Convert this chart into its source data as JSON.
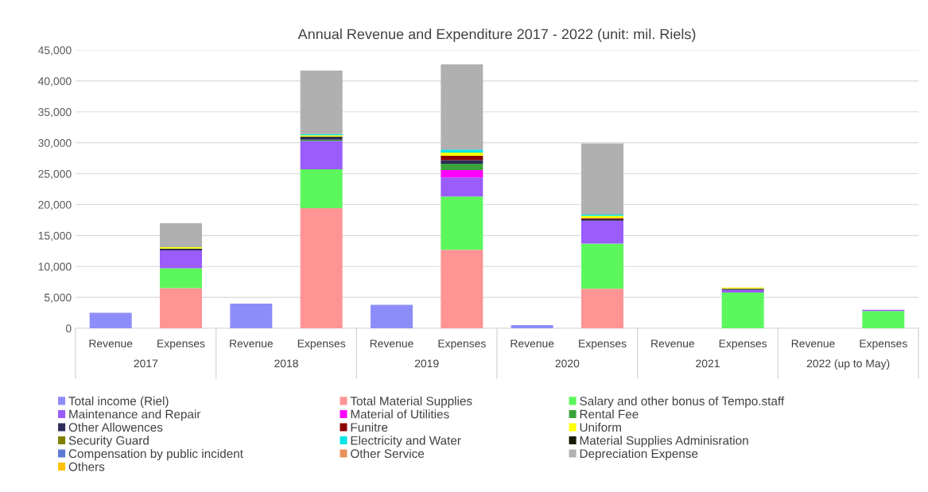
{
  "chart_data": {
    "type": "bar",
    "stacked": true,
    "title": "Annual Revenue and Expenditure 2017 - 2022 (unit: mil. Riels)",
    "categories": [
      "Revenue",
      "Expenses",
      "Revenue",
      "Expenses",
      "Revenue",
      "Expenses",
      "Revenue",
      "Expenses",
      "Revenue",
      "Expenses",
      "Revenue",
      "Expenses"
    ],
    "annotations": [
      "2017",
      "2018",
      "2019",
      "2020",
      "2021",
      "2022 (up to May)"
    ],
    "ylim": [
      0,
      45000
    ],
    "yticks": [
      0,
      {
        "value": 5000,
        "label": "5,000"
      },
      {
        "value": 10000,
        "label": "10,000"
      },
      {
        "value": 15000,
        "label": "15,000"
      },
      {
        "value": 20000,
        "label": "20,000"
      },
      {
        "value": 25000,
        "label": "25,000"
      },
      {
        "value": 30000,
        "label": "30,000"
      },
      {
        "value": 35000,
        "label": "35,000"
      },
      {
        "value": 40000,
        "label": "40,000"
      },
      {
        "value": 45000,
        "label": "45,000"
      }
    ],
    "grid": "y",
    "legend": "bottom",
    "series": [
      {
        "name": "Total income (Riel)",
        "color": "#8d8dfa",
        "values": [
          2500,
          null,
          4000,
          null,
          3800,
          null,
          500,
          null,
          null,
          null,
          null,
          null
        ]
      },
      {
        "name": "Total Material Supplies",
        "color": "#fe9494",
        "values": [
          null,
          6500,
          null,
          19400,
          null,
          12700,
          null,
          6400,
          null,
          null,
          null,
          null
        ]
      },
      {
        "name": "Salary and other bonus of Tempo.staff",
        "color": "#5cf75c",
        "values": [
          null,
          3200,
          null,
          6300,
          null,
          8600,
          null,
          7300,
          null,
          5800,
          null,
          2800
        ]
      },
      {
        "name": "Maintenance and Repair",
        "color": "#9a5cfa",
        "values": [
          null,
          2900,
          null,
          4600,
          null,
          3100,
          null,
          3700,
          null,
          400,
          null,
          200
        ]
      },
      {
        "name": "Material of Utilities",
        "color": "#ff00ff",
        "values": [
          null,
          null,
          null,
          null,
          null,
          1200,
          null,
          null,
          null,
          null,
          null,
          null
        ]
      },
      {
        "name": "Rental Fee",
        "color": "#3aa43a",
        "values": [
          null,
          null,
          null,
          200,
          null,
          1000,
          null,
          null,
          null,
          null,
          null,
          null
        ]
      },
      {
        "name": "Other Allowences",
        "color": "#2d2d5a",
        "values": [
          null,
          300,
          null,
          500,
          null,
          600,
          null,
          200,
          null,
          200,
          null,
          null
        ]
      },
      {
        "name": "Funitre",
        "color": "#8b0000",
        "values": [
          null,
          null,
          null,
          null,
          null,
          700,
          null,
          200,
          null,
          null,
          null,
          null
        ]
      },
      {
        "name": "Uniform",
        "color": "#ffff00",
        "values": [
          null,
          200,
          null,
          200,
          null,
          500,
          null,
          400,
          null,
          200,
          null,
          null
        ]
      },
      {
        "name": "Security Guard",
        "color": "#808000",
        "values": [
          null,
          null,
          null,
          null,
          null,
          null,
          null,
          null,
          null,
          null,
          null,
          null
        ]
      },
      {
        "name": "Electricity and Water",
        "color": "#00e5e5",
        "values": [
          null,
          null,
          null,
          200,
          null,
          500,
          null,
          200,
          null,
          null,
          null,
          null
        ]
      },
      {
        "name": "Material Supplies Adminisration",
        "color": "#1a1a00",
        "values": [
          null,
          null,
          null,
          null,
          null,
          null,
          null,
          null,
          null,
          null,
          null,
          null
        ]
      },
      {
        "name": "Compensation by public incident",
        "color": "#5b7bd5",
        "values": [
          null,
          null,
          null,
          null,
          null,
          null,
          null,
          null,
          null,
          null,
          null,
          null
        ]
      },
      {
        "name": "Other Service",
        "color": "#e8915a",
        "values": [
          null,
          null,
          null,
          null,
          null,
          null,
          null,
          null,
          null,
          null,
          null,
          null
        ]
      },
      {
        "name": "Depreciation Expense",
        "color": "#b0b0b0",
        "values": [
          null,
          3900,
          null,
          10300,
          null,
          13800,
          null,
          11500,
          null,
          null,
          null,
          null
        ]
      },
      {
        "name": "Others",
        "color": "#ffc000",
        "values": [
          null,
          null,
          null,
          null,
          null,
          null,
          null,
          null,
          null,
          null,
          null,
          null
        ]
      }
    ]
  }
}
